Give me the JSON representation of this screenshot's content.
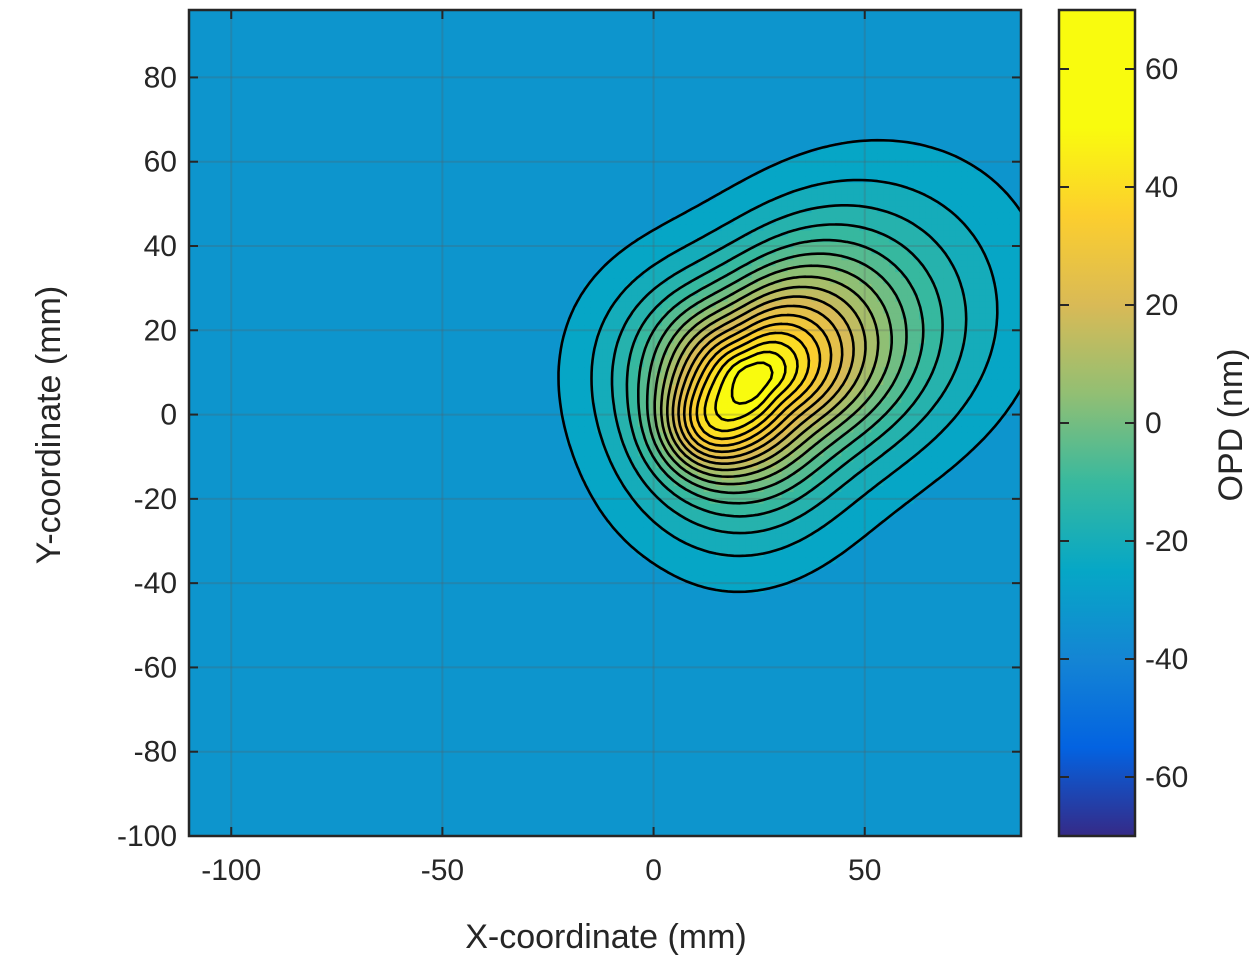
{
  "chart_data": {
    "type": "contour",
    "xlabel": "X-coordinate (mm)",
    "ylabel": "Y-coordinate (mm)",
    "colorbar_label": "OPD (nm)",
    "xlim": [
      -110,
      87
    ],
    "ylim": [
      -100,
      96
    ],
    "x_ticks": [
      -100,
      -50,
      0,
      50
    ],
    "x_tick_labels": [
      "-100",
      "-50",
      "0",
      "50"
    ],
    "y_ticks": [
      -100,
      -80,
      -60,
      -40,
      -20,
      0,
      20,
      40,
      60,
      80
    ],
    "y_tick_labels": [
      "-100",
      "-80",
      "-60",
      "-40",
      "-20",
      "0",
      "20",
      "40",
      "60",
      "80"
    ],
    "colorbar_range": [
      -70,
      70
    ],
    "colorbar_ticks": [
      -60,
      -40,
      -20,
      0,
      20,
      40,
      60
    ],
    "colorbar_tick_labels": [
      "-60",
      "-40",
      "-20",
      "0",
      "20",
      "40",
      "60"
    ],
    "colormap": "parula",
    "colormap_stops": [
      {
        "value": -70,
        "color": "#352A87"
      },
      {
        "value": -55,
        "color": "#0363E1"
      },
      {
        "value": -40,
        "color": "#1485D4"
      },
      {
        "value": -25,
        "color": "#06A7C6"
      },
      {
        "value": -10,
        "color": "#38B99E"
      },
      {
        "value": 5,
        "color": "#92BF73"
      },
      {
        "value": 20,
        "color": "#D9BA56"
      },
      {
        "value": 35,
        "color": "#FCCE2E"
      },
      {
        "value": 50,
        "color": "#F9FB0E"
      }
    ],
    "background_level": -33,
    "grid": true,
    "peak": {
      "x": 24,
      "y": 9,
      "value": 65
    },
    "secondary_peak": {
      "x": 12,
      "y": -3,
      "value": 45
    },
    "depression": {
      "x": -30,
      "y": -55,
      "value": -45
    },
    "contour_step": 5,
    "contour_count": 19
  }
}
